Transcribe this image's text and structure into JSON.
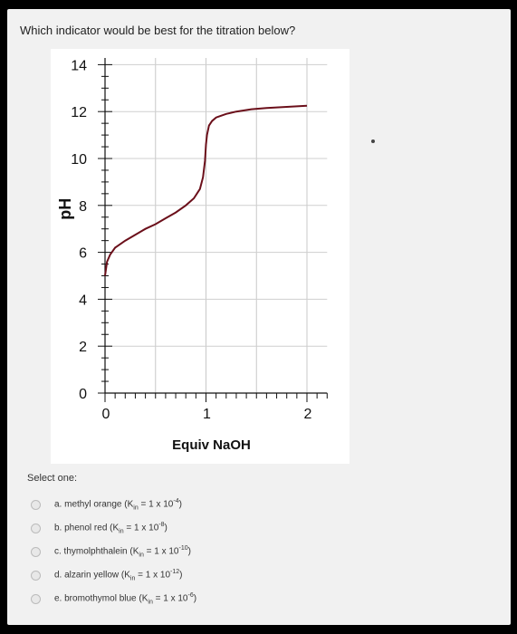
{
  "question": "Which indicator would be best for the titration below?",
  "select_label": "Select one:",
  "options": [
    {
      "label": "a. methyl orange (K",
      "sub": "in",
      "eq": " = 1 x 10",
      "exp": "-4",
      "close": ")"
    },
    {
      "label": "b. phenol red (K",
      "sub": "in",
      "eq": " = 1 x 10",
      "exp": "-8",
      "close": ")"
    },
    {
      "label": "c. thymolphthalein (K",
      "sub": "in",
      "eq": " = 1 x 10",
      "exp": "-10",
      "close": ")"
    },
    {
      "label": "d. alzarin yellow (K",
      "sub": "in",
      "eq": " = 1 x 10",
      "exp": "-12",
      "close": ")"
    },
    {
      "label": "e. bromothymol blue (K",
      "sub": "in",
      "eq": " = 1 x 10",
      "exp": "-6",
      "close": ")"
    }
  ],
  "chart_data": {
    "type": "line",
    "title": "",
    "xlabel": "Equiv NaOH",
    "ylabel": "pH",
    "xlim": [
      0,
      2.2
    ],
    "ylim": [
      0,
      14
    ],
    "x_ticks": [
      0,
      1,
      2
    ],
    "y_ticks": [
      0,
      2,
      4,
      6,
      8,
      10,
      12,
      14
    ],
    "grid": true,
    "line_color": "#6b0f1a",
    "series": [
      {
        "x": [
          0,
          0.02,
          0.05,
          0.1,
          0.2,
          0.3,
          0.4,
          0.5,
          0.6,
          0.7,
          0.8,
          0.88,
          0.94,
          0.97,
          0.99,
          1.0,
          1.01,
          1.03,
          1.06,
          1.1,
          1.2,
          1.3,
          1.45,
          1.6,
          1.8,
          2.0
        ],
        "y": [
          5.0,
          5.6,
          5.9,
          6.2,
          6.5,
          6.75,
          7.0,
          7.2,
          7.45,
          7.7,
          8.0,
          8.3,
          8.7,
          9.2,
          9.9,
          10.6,
          11.0,
          11.4,
          11.6,
          11.75,
          11.9,
          12.0,
          12.1,
          12.15,
          12.2,
          12.25
        ]
      }
    ]
  }
}
